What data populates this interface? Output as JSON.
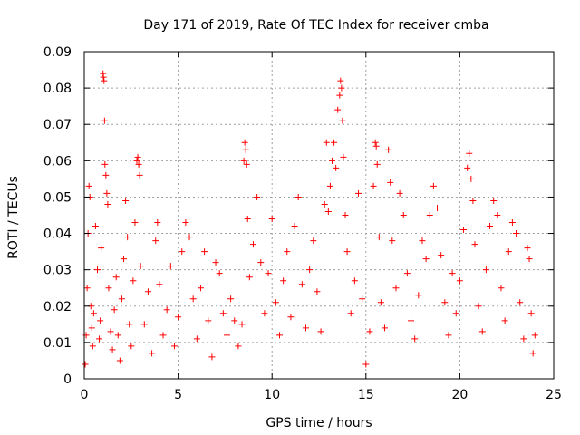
{
  "chart_data": {
    "type": "scatter",
    "title": "Day 171 of 2019, Rate Of TEC Index for receiver cmba",
    "xlabel": "GPS time / hours",
    "ylabel": "ROTI / TECUs",
    "xlim": [
      0,
      25
    ],
    "ylim": [
      0,
      0.09
    ],
    "xticks": [
      0,
      5,
      10,
      15,
      20,
      25
    ],
    "xtick_labels": [
      "0",
      "5",
      "10",
      "15",
      "20",
      "25"
    ],
    "yticks": [
      0,
      0.01,
      0.02,
      0.03,
      0.04,
      0.05,
      0.06,
      0.07,
      0.08,
      0.09
    ],
    "ytick_labels": [
      "0",
      "0.01",
      "0.02",
      "0.03",
      "0.04",
      "0.05",
      "0.06",
      "0.07",
      "0.08",
      "0.09"
    ],
    "grid": true,
    "marker": "+",
    "color": "#ff0000",
    "series": [
      {
        "name": "ROTI",
        "points": [
          [
            0.05,
            0.004
          ],
          [
            0.1,
            0.012
          ],
          [
            0.15,
            0.025
          ],
          [
            0.2,
            0.04
          ],
          [
            0.25,
            0.053
          ],
          [
            0.3,
            0.05
          ],
          [
            0.35,
            0.02
          ],
          [
            0.4,
            0.014
          ],
          [
            0.45,
            0.009
          ],
          [
            0.5,
            0.018
          ],
          [
            0.6,
            0.042
          ],
          [
            0.7,
            0.03
          ],
          [
            0.8,
            0.011
          ],
          [
            0.85,
            0.016
          ],
          [
            0.9,
            0.036
          ],
          [
            1.0,
            0.084
          ],
          [
            1.02,
            0.083
          ],
          [
            1.05,
            0.082
          ],
          [
            1.08,
            0.071
          ],
          [
            1.1,
            0.059
          ],
          [
            1.15,
            0.056
          ],
          [
            1.2,
            0.051
          ],
          [
            1.25,
            0.048
          ],
          [
            1.3,
            0.025
          ],
          [
            1.4,
            0.013
          ],
          [
            1.5,
            0.008
          ],
          [
            1.6,
            0.019
          ],
          [
            1.7,
            0.028
          ],
          [
            1.8,
            0.012
          ],
          [
            1.9,
            0.005
          ],
          [
            2.0,
            0.022
          ],
          [
            2.1,
            0.033
          ],
          [
            2.2,
            0.049
          ],
          [
            2.3,
            0.039
          ],
          [
            2.4,
            0.015
          ],
          [
            2.5,
            0.009
          ],
          [
            2.6,
            0.027
          ],
          [
            2.7,
            0.043
          ],
          [
            2.8,
            0.06
          ],
          [
            2.85,
            0.061
          ],
          [
            2.9,
            0.059
          ],
          [
            2.95,
            0.056
          ],
          [
            3.0,
            0.031
          ],
          [
            3.2,
            0.015
          ],
          [
            3.4,
            0.024
          ],
          [
            3.6,
            0.007
          ],
          [
            3.8,
            0.038
          ],
          [
            3.9,
            0.043
          ],
          [
            4.0,
            0.026
          ],
          [
            4.2,
            0.012
          ],
          [
            4.4,
            0.019
          ],
          [
            4.6,
            0.031
          ],
          [
            4.8,
            0.009
          ],
          [
            5.0,
            0.017
          ],
          [
            5.2,
            0.035
          ],
          [
            5.4,
            0.043
          ],
          [
            5.6,
            0.039
          ],
          [
            5.8,
            0.022
          ],
          [
            6.0,
            0.011
          ],
          [
            6.2,
            0.025
          ],
          [
            6.4,
            0.035
          ],
          [
            6.6,
            0.016
          ],
          [
            6.8,
            0.006
          ],
          [
            7.0,
            0.032
          ],
          [
            7.2,
            0.029
          ],
          [
            7.4,
            0.018
          ],
          [
            7.6,
            0.012
          ],
          [
            7.8,
            0.022
          ],
          [
            8.0,
            0.016
          ],
          [
            8.2,
            0.009
          ],
          [
            8.4,
            0.015
          ],
          [
            8.5,
            0.06
          ],
          [
            8.55,
            0.065
          ],
          [
            8.6,
            0.063
          ],
          [
            8.65,
            0.059
          ],
          [
            8.7,
            0.044
          ],
          [
            8.8,
            0.028
          ],
          [
            9.0,
            0.037
          ],
          [
            9.2,
            0.05
          ],
          [
            9.4,
            0.032
          ],
          [
            9.6,
            0.018
          ],
          [
            9.8,
            0.029
          ],
          [
            10.0,
            0.044
          ],
          [
            10.2,
            0.021
          ],
          [
            10.4,
            0.012
          ],
          [
            10.6,
            0.027
          ],
          [
            10.8,
            0.035
          ],
          [
            11.0,
            0.017
          ],
          [
            11.2,
            0.042
          ],
          [
            11.4,
            0.05
          ],
          [
            11.6,
            0.026
          ],
          [
            11.8,
            0.014
          ],
          [
            12.0,
            0.03
          ],
          [
            12.2,
            0.038
          ],
          [
            12.4,
            0.024
          ],
          [
            12.6,
            0.013
          ],
          [
            12.8,
            0.048
          ],
          [
            12.9,
            0.065
          ],
          [
            13.0,
            0.046
          ],
          [
            13.1,
            0.053
          ],
          [
            13.2,
            0.06
          ],
          [
            13.3,
            0.065
          ],
          [
            13.4,
            0.058
          ],
          [
            13.5,
            0.074
          ],
          [
            13.6,
            0.078
          ],
          [
            13.65,
            0.082
          ],
          [
            13.7,
            0.08
          ],
          [
            13.75,
            0.071
          ],
          [
            13.8,
            0.061
          ],
          [
            13.9,
            0.045
          ],
          [
            14.0,
            0.035
          ],
          [
            14.2,
            0.018
          ],
          [
            14.4,
            0.027
          ],
          [
            14.6,
            0.051
          ],
          [
            14.8,
            0.022
          ],
          [
            15.0,
            0.004
          ],
          [
            15.2,
            0.013
          ],
          [
            15.4,
            0.053
          ],
          [
            15.5,
            0.065
          ],
          [
            15.55,
            0.064
          ],
          [
            15.6,
            0.059
          ],
          [
            15.7,
            0.039
          ],
          [
            15.8,
            0.021
          ],
          [
            16.0,
            0.014
          ],
          [
            16.2,
            0.063
          ],
          [
            16.3,
            0.054
          ],
          [
            16.4,
            0.038
          ],
          [
            16.6,
            0.025
          ],
          [
            16.8,
            0.051
          ],
          [
            17.0,
            0.045
          ],
          [
            17.2,
            0.029
          ],
          [
            17.4,
            0.016
          ],
          [
            17.6,
            0.011
          ],
          [
            17.8,
            0.023
          ],
          [
            18.0,
            0.038
          ],
          [
            18.2,
            0.033
          ],
          [
            18.4,
            0.045
          ],
          [
            18.6,
            0.053
          ],
          [
            18.8,
            0.047
          ],
          [
            19.0,
            0.034
          ],
          [
            19.2,
            0.021
          ],
          [
            19.4,
            0.012
          ],
          [
            19.6,
            0.029
          ],
          [
            19.8,
            0.018
          ],
          [
            20.0,
            0.027
          ],
          [
            20.2,
            0.041
          ],
          [
            20.4,
            0.058
          ],
          [
            20.5,
            0.062
          ],
          [
            20.6,
            0.055
          ],
          [
            20.7,
            0.049
          ],
          [
            20.8,
            0.037
          ],
          [
            21.0,
            0.02
          ],
          [
            21.2,
            0.013
          ],
          [
            21.4,
            0.03
          ],
          [
            21.6,
            0.042
          ],
          [
            21.8,
            0.049
          ],
          [
            22.0,
            0.045
          ],
          [
            22.2,
            0.025
          ],
          [
            22.4,
            0.016
          ],
          [
            22.6,
            0.035
          ],
          [
            22.8,
            0.043
          ],
          [
            23.0,
            0.04
          ],
          [
            23.2,
            0.021
          ],
          [
            23.4,
            0.011
          ],
          [
            23.6,
            0.036
          ],
          [
            23.7,
            0.033
          ],
          [
            23.8,
            0.018
          ],
          [
            23.9,
            0.007
          ],
          [
            24.0,
            0.012
          ]
        ]
      }
    ]
  }
}
